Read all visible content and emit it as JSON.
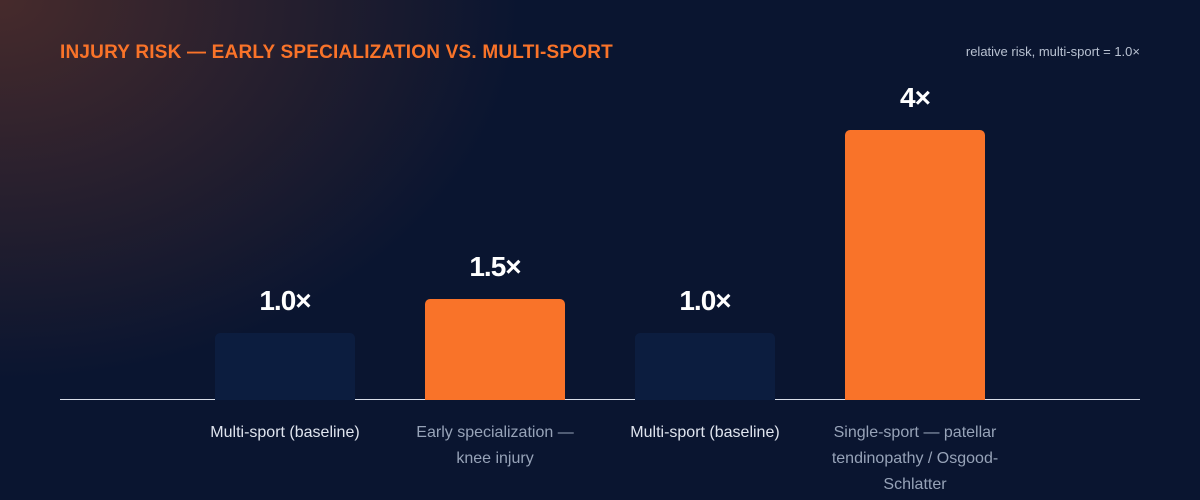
{
  "chart_data": {
    "type": "bar",
    "title": "INJURY RISK — EARLY SPECIALIZATION VS. MULTI-SPORT",
    "subtitle": "relative risk, multi-sport = 1.0×",
    "categories": [
      "Multi-sport (baseline)",
      "Early specialization — knee injury",
      "Multi-sport (baseline)",
      "Single-sport — patellar tendinopathy / Osgood-Schlatter"
    ],
    "values": [
      1.0,
      1.5,
      1.0,
      4
    ],
    "value_labels": [
      "1.0×",
      "1.5×",
      "1.0×",
      "4×"
    ],
    "colors": [
      "#0c1d3f",
      "#f97329",
      "#0c1d3f",
      "#f97329"
    ]
  }
}
